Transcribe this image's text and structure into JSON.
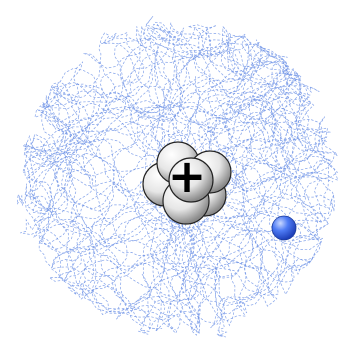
{
  "diagram": {
    "orbital_path_color": "#6e93e6",
    "nucleus": {
      "nucleon_count": 6,
      "charge_symbol": "+",
      "nucleon_color": "#e8e8e8"
    },
    "electron": {
      "count": 1,
      "color": "#3d6cf2"
    }
  }
}
